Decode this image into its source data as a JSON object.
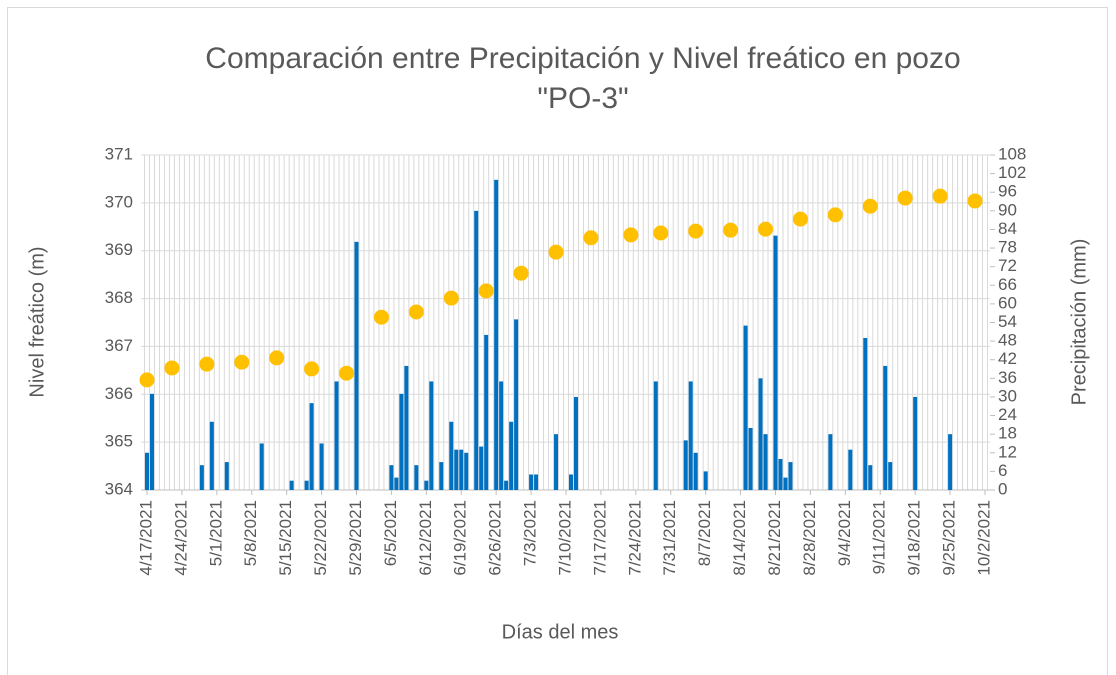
{
  "chart_data": {
    "type": "combo",
    "title": [
      "Comparación entre Precipitación y Nivel freático en pozo",
      "\"PO-3\""
    ],
    "x_label": "Días del mes",
    "y_label": "Nivel freático (m)",
    "y2_label": "Precipitación (mm)",
    "xlim": [
      "4/17/2021",
      "10/2/2021"
    ],
    "xticks": [
      "4/17/2021",
      "4/24/2021",
      "5/1/2021",
      "5/8/2021",
      "5/15/2021",
      "5/22/2021",
      "5/29/2021",
      "6/5/2021",
      "6/12/2021",
      "6/19/2021",
      "6/26/2021",
      "7/3/2021",
      "7/10/2021",
      "7/17/2021",
      "7/24/2021",
      "7/31/2021",
      "8/7/2021",
      "8/14/2021",
      "8/21/2021",
      "8/28/2021",
      "9/4/2021",
      "9/11/2021",
      "9/18/2021",
      "9/25/2021",
      "10/2/2021"
    ],
    "ylim": [
      364,
      371
    ],
    "yticks": [
      364,
      365,
      366,
      367,
      368,
      369,
      370,
      371
    ],
    "y2lim": [
      0,
      108
    ],
    "y2ticks": [
      0,
      6,
      12,
      18,
      24,
      30,
      36,
      42,
      48,
      54,
      60,
      66,
      72,
      78,
      84,
      90,
      96,
      102,
      108
    ],
    "grid": true,
    "series": [
      {
        "type": "bar",
        "axis": "y2",
        "color": "#0070c0",
        "x": [
          "4/17/2021",
          "4/18/2021",
          "4/28/2021",
          "4/30/2021",
          "5/3/2021",
          "5/10/2021",
          "5/16/2021",
          "5/19/2021",
          "5/20/2021",
          "5/22/2021",
          "5/25/2021",
          "5/29/2021",
          "6/5/2021",
          "6/6/2021",
          "6/7/2021",
          "6/8/2021",
          "6/10/2021",
          "6/12/2021",
          "6/13/2021",
          "6/15/2021",
          "6/17/2021",
          "6/18/2021",
          "6/19/2021",
          "6/20/2021",
          "6/22/2021",
          "6/23/2021",
          "6/24/2021",
          "6/26/2021",
          "6/27/2021",
          "6/28/2021",
          "6/29/2021",
          "6/30/2021",
          "7/3/2021",
          "7/4/2021",
          "7/8/2021",
          "7/11/2021",
          "7/12/2021",
          "7/28/2021",
          "8/3/2021",
          "8/4/2021",
          "8/5/2021",
          "8/7/2021",
          "8/15/2021",
          "8/16/2021",
          "8/18/2021",
          "8/19/2021",
          "8/21/2021",
          "8/22/2021",
          "8/23/2021",
          "8/24/2021",
          "9/1/2021",
          "9/5/2021",
          "9/8/2021",
          "9/9/2021",
          "9/12/2021",
          "9/13/2021",
          "9/18/2021",
          "9/25/2021"
        ],
        "values": [
          12,
          31,
          8,
          22,
          9,
          15,
          3,
          3,
          28,
          15,
          35,
          80,
          8,
          4,
          31,
          40,
          8,
          3,
          35,
          9,
          22,
          13,
          13,
          12,
          90,
          14,
          50,
          100,
          35,
          3,
          22,
          55,
          5,
          5,
          18,
          5,
          30,
          35,
          16,
          35,
          12,
          6,
          53,
          20,
          36,
          18,
          82,
          10,
          4,
          9,
          18,
          13,
          49,
          8,
          40,
          9,
          30,
          18
        ]
      },
      {
        "type": "scatter",
        "color": "#ffc000",
        "x": [
          "4/17/2021",
          "4/22/2021",
          "4/29/2021",
          "5/6/2021",
          "5/13/2021",
          "5/20/2021",
          "5/27/2021",
          "6/3/2021",
          "6/10/2021",
          "6/17/2021",
          "6/24/2021",
          "7/1/2021",
          "7/8/2021",
          "7/15/2021",
          "7/23/2021",
          "7/29/2021",
          "8/5/2021",
          "8/12/2021",
          "8/19/2021",
          "8/26/2021",
          "9/2/2021",
          "9/9/2021",
          "9/16/2021",
          "9/23/2021",
          "9/30/2021"
        ],
        "values": [
          366.3,
          366.55,
          366.63,
          366.67,
          366.76,
          366.53,
          366.44,
          367.61,
          367.72,
          368.01,
          368.16,
          368.53,
          368.97,
          369.27,
          369.33,
          369.37,
          369.41,
          369.43,
          369.45,
          369.66,
          369.75,
          369.93,
          370.1,
          370.14,
          370.04
        ]
      }
    ]
  }
}
